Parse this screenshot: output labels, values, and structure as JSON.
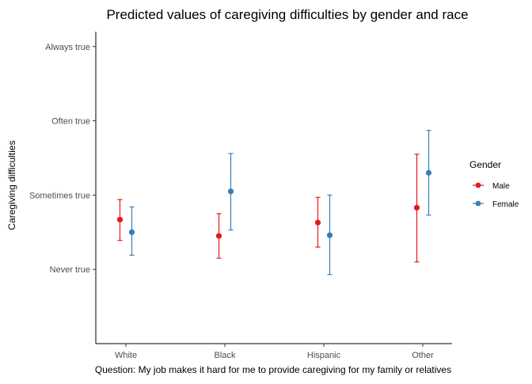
{
  "chart_data": {
    "type": "scatter",
    "title": "Predicted values of caregiving difficulties by gender and race",
    "xlabel": "Question: My job makes it hard for me to provide caregiving for my family or relatives",
    "ylabel": "Caregiving difficulties",
    "categories": [
      "White",
      "Black",
      "Hispanic",
      "Other"
    ],
    "y_ticks": [
      {
        "value": 1,
        "label": "Never true"
      },
      {
        "value": 2,
        "label": "Sometimes true"
      },
      {
        "value": 3,
        "label": "Often true"
      },
      {
        "value": 4,
        "label": "Always true"
      }
    ],
    "ylim": [
      0.0,
      4.2
    ],
    "grid": false,
    "legend": {
      "title": "Gender",
      "position": "right"
    },
    "series": [
      {
        "name": "Male",
        "color": "#e41a1c",
        "values": [
          1.67,
          1.45,
          1.63,
          1.83
        ],
        "lower": [
          1.39,
          1.15,
          1.3,
          1.1
        ],
        "upper": [
          1.94,
          1.75,
          1.97,
          2.55
        ]
      },
      {
        "name": "Female",
        "color": "#377eb8",
        "values": [
          1.5,
          2.05,
          1.46,
          2.3
        ],
        "lower": [
          1.19,
          1.53,
          0.93,
          1.73
        ],
        "upper": [
          1.84,
          2.56,
          2.0,
          2.87
        ]
      }
    ]
  }
}
